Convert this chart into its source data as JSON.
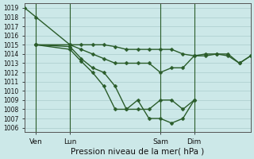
{
  "xlabel": "Pression niveau de la mer( hPa )",
  "ylim": [
    1005.5,
    1019.5
  ],
  "xlim": [
    0,
    120
  ],
  "yticks": [
    1006,
    1007,
    1008,
    1009,
    1010,
    1011,
    1012,
    1013,
    1014,
    1015,
    1016,
    1017,
    1018,
    1019
  ],
  "xtick_positions": [
    6,
    24,
    72,
    90
  ],
  "xtick_labels": [
    "Ven",
    "Lun",
    "Sam",
    "Dim"
  ],
  "background_color": "#cce8e8",
  "grid_color": "#aacccc",
  "line_color": "#2a5c2a",
  "vline_color": "#2a5c2a",
  "series1_x": [
    0,
    6,
    24,
    30,
    36,
    42,
    48,
    54,
    60,
    66,
    72,
    78,
    84,
    90,
    96,
    102,
    108,
    114,
    120
  ],
  "series1_y": [
    1019,
    1018,
    1015,
    1015,
    1015,
    1015,
    1014.8,
    1014.5,
    1014.5,
    1014.5,
    1014.5,
    1014.5,
    1014,
    1013.8,
    1014,
    1014,
    1013.8,
    1013,
    1013.8
  ],
  "series2_x": [
    6,
    24,
    30,
    36,
    42,
    48,
    54,
    60,
    66,
    72,
    78,
    84,
    90,
    96,
    102,
    108,
    114,
    120
  ],
  "series2_y": [
    1015,
    1015,
    1014.5,
    1014,
    1013.5,
    1013,
    1013,
    1013,
    1013,
    1012,
    1012.5,
    1012.5,
    1013.8,
    1013.8,
    1014,
    1014,
    1013,
    1013.8
  ],
  "series3_x": [
    6,
    24,
    30,
    36,
    42,
    48,
    54,
    60,
    66,
    72,
    78,
    84,
    90
  ],
  "series3_y": [
    1015,
    1014.8,
    1013.5,
    1012.5,
    1012,
    1010.5,
    1008,
    1008,
    1008,
    1009,
    1009,
    1008,
    1009
  ],
  "series4_x": [
    6,
    24,
    30,
    36,
    42,
    48,
    54,
    60,
    66,
    72,
    78,
    84,
    90
  ],
  "series4_y": [
    1015,
    1014.5,
    1013.2,
    1012,
    1010.5,
    1008,
    1008,
    1009,
    1007,
    1007,
    1006.5,
    1007,
    1009
  ],
  "vlines": [
    6,
    24,
    72,
    90
  ],
  "marker": "D",
  "marker_size": 2.5,
  "linewidth": 1.0
}
